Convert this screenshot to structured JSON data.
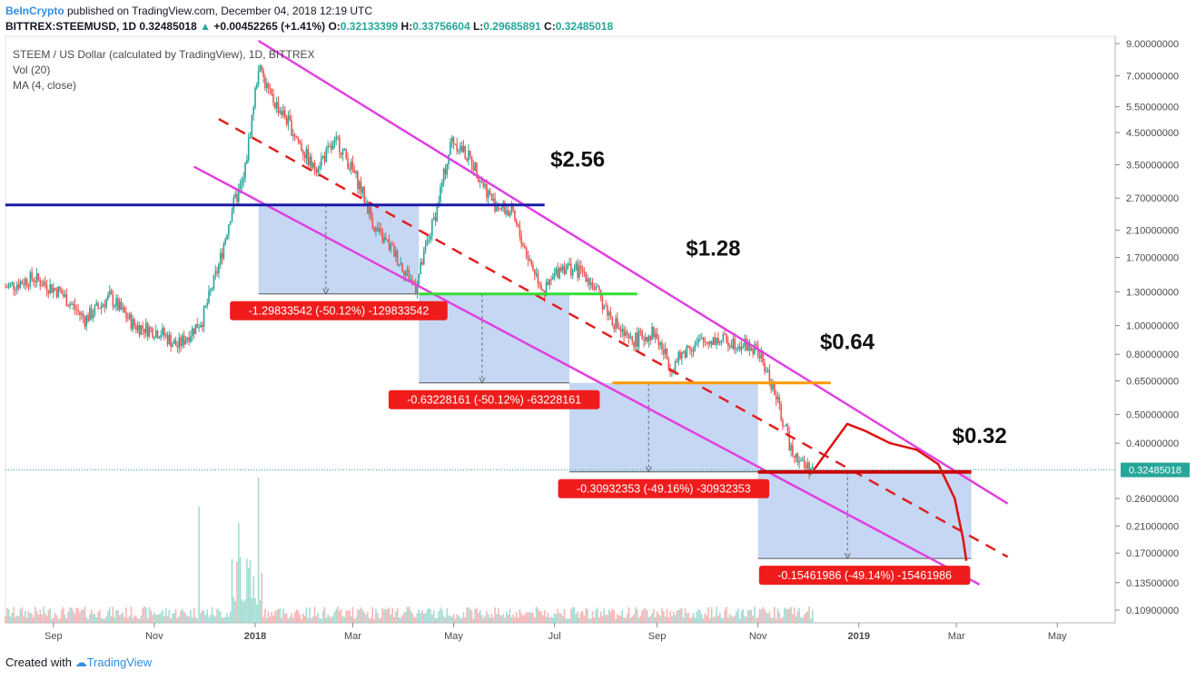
{
  "header": {
    "brand": "BeInCrypto",
    "published": " published on TradingView.com, December 04, 2018 12:19 UTC"
  },
  "ticker": {
    "symbol": "BITTREX:STEEMUSD, 1D ",
    "price": "0.32485018",
    "arrow": "▲",
    "change": "+0.00452265 (+1.41%)",
    "o_label": "O:",
    "o": "0.32133399",
    "h_label": "H:",
    "h": "0.33756604",
    "l_label": "L:",
    "l": "0.29685891",
    "c_label": "C:",
    "c": "0.32485018"
  },
  "legend": {
    "title": "STEEM / US Dollar (calculated by TradingView), 1D, BITTREX",
    "vol": "Vol (20)",
    "ma": "MA (4, close)"
  },
  "footer": {
    "created": "Created with ",
    "brand": "TradingView"
  },
  "chart_data": {
    "type": "candlestick",
    "symbol": "BITTREX:STEEMUSD",
    "interval": "1D",
    "y_scale": "log",
    "y_ticks": [
      "9.00000000",
      "7.00000000",
      "5.50000000",
      "4.50000000",
      "3.50000000",
      "2.70000000",
      "2.10000000",
      "1.70000000",
      "1.30000000",
      "1.00000000",
      "0.80000000",
      "0.65000000",
      "0.50000000",
      "0.40000000",
      "0.32485018",
      "0.26000000",
      "0.21000000",
      "0.17000000",
      "0.13500000",
      "0.10900000"
    ],
    "x_ticks": [
      "Sep",
      "Nov",
      "2018",
      "Mar",
      "May",
      "Jul",
      "Sep",
      "Nov",
      "2019",
      "Mar",
      "May"
    ],
    "x_range": [
      "2017-08-03",
      "2019-06-05"
    ],
    "last_price": 0.32485018,
    "price_path": [
      [
        "2017-08-03",
        1.35
      ],
      [
        "2017-08-20",
        1.45
      ],
      [
        "2017-09-05",
        1.3
      ],
      [
        "2017-09-20",
        1.05
      ],
      [
        "2017-10-05",
        1.25
      ],
      [
        "2017-10-20",
        1.0
      ],
      [
        "2017-11-05",
        0.95
      ],
      [
        "2017-11-15",
        0.85
      ],
      [
        "2017-11-30",
        1.05
      ],
      [
        "2017-12-10",
        1.6
      ],
      [
        "2017-12-18",
        2.5
      ],
      [
        "2017-12-25",
        3.1
      ],
      [
        "2018-01-03",
        7.5
      ],
      [
        "2018-01-10",
        6.0
      ],
      [
        "2018-01-20",
        5.0
      ],
      [
        "2018-02-05",
        3.4
      ],
      [
        "2018-02-20",
        4.2
      ],
      [
        "2018-03-05",
        3.0
      ],
      [
        "2018-03-15",
        2.1
      ],
      [
        "2018-03-25",
        1.8
      ],
      [
        "2018-04-08",
        1.35
      ],
      [
        "2018-04-20",
        2.4
      ],
      [
        "2018-04-30",
        4.3
      ],
      [
        "2018-05-12",
        3.6
      ],
      [
        "2018-05-25",
        2.6
      ],
      [
        "2018-06-05",
        2.4
      ],
      [
        "2018-06-15",
        1.7
      ],
      [
        "2018-06-25",
        1.3
      ],
      [
        "2018-07-05",
        1.6
      ],
      [
        "2018-07-20",
        1.5
      ],
      [
        "2018-08-05",
        1.05
      ],
      [
        "2018-08-15",
        0.88
      ],
      [
        "2018-08-30",
        0.95
      ],
      [
        "2018-09-10",
        0.72
      ],
      [
        "2018-09-20",
        0.85
      ],
      [
        "2018-10-05",
        0.9
      ],
      [
        "2018-10-20",
        0.88
      ],
      [
        "2018-11-01",
        0.82
      ],
      [
        "2018-11-10",
        0.62
      ],
      [
        "2018-11-20",
        0.4
      ],
      [
        "2018-11-28",
        0.34
      ],
      [
        "2018-12-04",
        0.325
      ]
    ],
    "horizontal_levels": [
      {
        "price": 2.56,
        "color": "#1a1aa6",
        "from": "2017-08-03",
        "to": "2018-06-25"
      },
      {
        "price": 1.28,
        "color": "#33dd33",
        "from": "2018-04-10",
        "to": "2018-08-20"
      },
      {
        "price": 0.64,
        "color": "#ff9900",
        "from": "2018-08-05",
        "to": "2018-12-15"
      },
      {
        "price": 0.32,
        "color": "#cc0000",
        "from": "2018-11-01",
        "to": "2019-03-10"
      }
    ],
    "channel": {
      "upper": [
        [
          "2018-01-03",
          9.2
        ],
        [
          "2019-04-01",
          0.25
        ]
      ],
      "lower": [
        [
          "2017-11-25",
          3.45
        ],
        [
          "2019-03-15",
          0.133
        ]
      ],
      "mid": [
        [
          "2017-12-10",
          5.0
        ],
        [
          "2019-04-01",
          0.165
        ]
      ],
      "color": "#e040e0",
      "mid_color": "#e02020"
    },
    "projection": [
      [
        "2018-12-04",
        0.32
      ],
      [
        "2018-12-15",
        0.39
      ],
      [
        "2018-12-25",
        0.465
      ],
      [
        "2019-01-05",
        0.44
      ],
      [
        "2019-01-20",
        0.4
      ],
      [
        "2019-02-05",
        0.38
      ],
      [
        "2019-02-18",
        0.34
      ],
      [
        "2019-02-28",
        0.26
      ],
      [
        "2019-03-05",
        0.19
      ],
      [
        "2019-03-07",
        0.16
      ]
    ],
    "measurements": [
      {
        "from_date": "2018-01-03",
        "to_date": "2018-04-10",
        "top": 2.56,
        "bottom": 1.28,
        "label": "-1.29833542 (-50.12%) -129833542"
      },
      {
        "from_date": "2018-04-10",
        "to_date": "2018-07-10",
        "top": 1.28,
        "bottom": 0.64,
        "label": "-0.63228161 (-50.12%) -63228161"
      },
      {
        "from_date": "2018-07-10",
        "to_date": "2018-11-01",
        "top": 0.64,
        "bottom": 0.32,
        "label": "-0.30932353 (-49.16%) -30932353"
      },
      {
        "from_date": "2018-11-01",
        "to_date": "2019-03-10",
        "top": 0.32,
        "bottom": 0.163,
        "label": "-0.15461986 (-49.14%) -15461986"
      }
    ],
    "level_labels": [
      "$2.56",
      "$1.28",
      "$0.64",
      "$0.32"
    ]
  }
}
